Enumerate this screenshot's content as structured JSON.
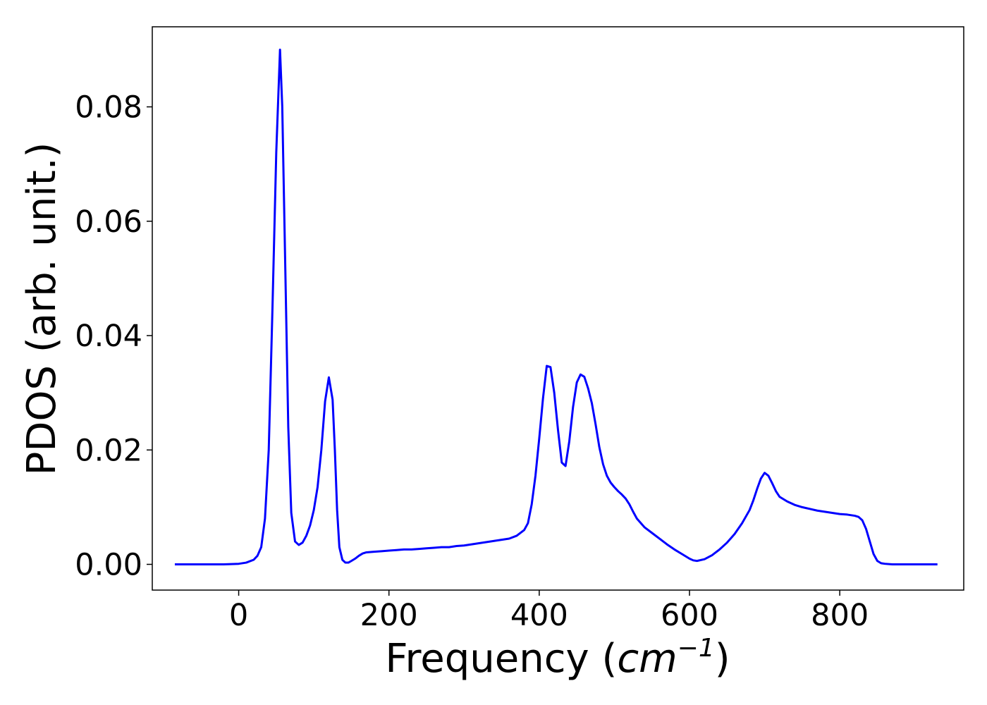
{
  "chart_data": {
    "type": "line",
    "title": "",
    "xlabel_prefix": "Frequency (",
    "xlabel_unit": "cm",
    "xlabel_exponent": "−1",
    "xlabel_suffix": ")",
    "ylabel": "PDOS (arb. unit.)",
    "xlim": [
      -115,
      965
    ],
    "ylim": [
      -0.0045,
      0.094
    ],
    "xticks": [
      0,
      200,
      400,
      600,
      800
    ],
    "xtick_labels": [
      "0",
      "200",
      "400",
      "600",
      "800"
    ],
    "yticks": [
      0.0,
      0.02,
      0.04,
      0.06,
      0.08
    ],
    "ytick_labels": [
      "0.00",
      "0.02",
      "0.04",
      "0.06",
      "0.08"
    ],
    "grid": false,
    "series": [
      {
        "color": "#0000ff",
        "x": [
          -85,
          -60,
          -40,
          -20,
          0,
          10,
          20,
          25,
          30,
          35,
          40,
          45,
          50,
          55,
          58,
          62,
          66,
          70,
          75,
          80,
          85,
          90,
          95,
          100,
          105,
          110,
          115,
          120,
          125,
          128,
          131,
          134,
          138,
          142,
          146,
          150,
          155,
          160,
          165,
          170,
          180,
          190,
          200,
          210,
          220,
          230,
          240,
          250,
          260,
          270,
          280,
          290,
          300,
          310,
          320,
          330,
          340,
          350,
          360,
          370,
          380,
          385,
          390,
          395,
          400,
          405,
          410,
          415,
          420,
          425,
          430,
          435,
          440,
          445,
          450,
          455,
          460,
          465,
          470,
          475,
          480,
          485,
          490,
          495,
          500,
          505,
          510,
          515,
          520,
          525,
          530,
          540,
          550,
          560,
          570,
          580,
          590,
          600,
          605,
          610,
          620,
          630,
          640,
          650,
          660,
          670,
          680,
          685,
          690,
          695,
          700,
          705,
          710,
          715,
          720,
          730,
          740,
          750,
          760,
          770,
          780,
          790,
          800,
          810,
          820,
          825,
          830,
          835,
          840,
          845,
          850,
          855,
          860,
          870,
          880,
          900,
          930
        ],
        "y": [
          0.0,
          0.0,
          0.0,
          0.0,
          0.0001,
          0.0003,
          0.0008,
          0.0015,
          0.003,
          0.008,
          0.02,
          0.045,
          0.072,
          0.09,
          0.08,
          0.052,
          0.024,
          0.009,
          0.004,
          0.0034,
          0.0038,
          0.005,
          0.0068,
          0.0095,
          0.0135,
          0.02,
          0.0285,
          0.0327,
          0.0288,
          0.02,
          0.0095,
          0.003,
          0.0008,
          0.0003,
          0.0003,
          0.0006,
          0.001,
          0.0015,
          0.0019,
          0.0021,
          0.0022,
          0.0023,
          0.0024,
          0.0025,
          0.0026,
          0.0026,
          0.0027,
          0.0028,
          0.0029,
          0.003,
          0.003,
          0.0032,
          0.0033,
          0.0035,
          0.0037,
          0.0039,
          0.0041,
          0.0043,
          0.0045,
          0.005,
          0.006,
          0.0072,
          0.0105,
          0.0155,
          0.022,
          0.029,
          0.0347,
          0.0345,
          0.03,
          0.0235,
          0.0178,
          0.0172,
          0.0215,
          0.0275,
          0.0318,
          0.0332,
          0.0328,
          0.0308,
          0.0282,
          0.0245,
          0.0205,
          0.0175,
          0.0155,
          0.0143,
          0.0135,
          0.0128,
          0.0122,
          0.0115,
          0.0105,
          0.0092,
          0.008,
          0.0065,
          0.0055,
          0.0045,
          0.0035,
          0.0026,
          0.0018,
          0.001,
          0.0007,
          0.0006,
          0.0009,
          0.0016,
          0.0026,
          0.0038,
          0.0053,
          0.0072,
          0.0095,
          0.0112,
          0.0132,
          0.015,
          0.016,
          0.0155,
          0.0142,
          0.0128,
          0.0118,
          0.011,
          0.0104,
          0.01,
          0.0097,
          0.0094,
          0.0092,
          0.009,
          0.0088,
          0.0087,
          0.0085,
          0.0083,
          0.0077,
          0.0062,
          0.004,
          0.0018,
          0.0006,
          0.0002,
          0.0001,
          0.0,
          0.0,
          0.0,
          0.0
        ]
      }
    ]
  }
}
